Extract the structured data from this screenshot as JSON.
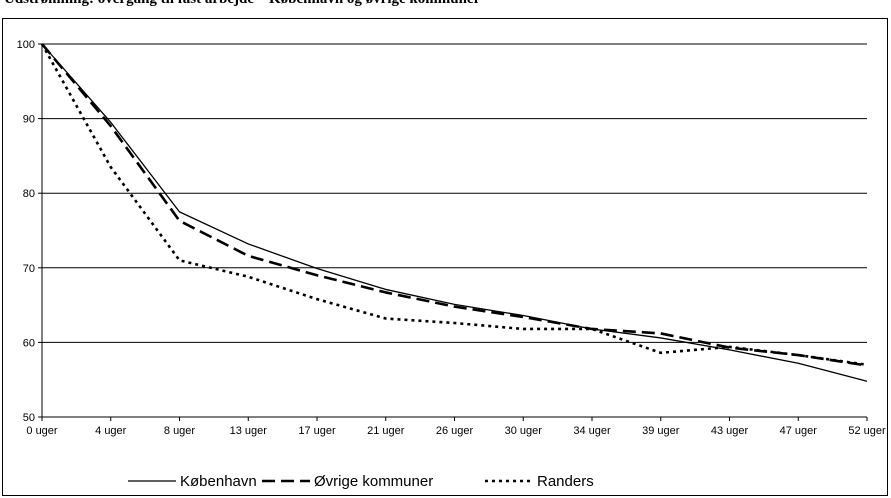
{
  "title": "Udstrømning: overgang til fast arbejde – København og øvrige kommuner",
  "chart_data": {
    "type": "line",
    "title": "",
    "xlabel": "",
    "ylabel": "",
    "categories": [
      "0 uger",
      "4 uger",
      "8 uger",
      "13 uger",
      "17 uger",
      "21 uger",
      "26 uger",
      "30 uger",
      "34 uger",
      "39 uger",
      "43 uger",
      "47 uger",
      "52 uger"
    ],
    "ylim": [
      50,
      100
    ],
    "yticks": [
      50,
      60,
      70,
      80,
      90,
      100
    ],
    "grid": true,
    "legend_position": "bottom",
    "series": [
      {
        "name": "København",
        "values": [
          100,
          89.5,
          77.5,
          73.2,
          69.9,
          67.1,
          65.1,
          63.6,
          61.8,
          60.6,
          59.0,
          57.2,
          54.8
        ],
        "color": "#000000",
        "style": "solid"
      },
      {
        "name": "Øvrige kommuner",
        "values": [
          100,
          89.0,
          76.3,
          71.6,
          69.0,
          66.7,
          64.8,
          63.4,
          61.8,
          61.2,
          59.3,
          58.3,
          56.9
        ],
        "color": "#000000",
        "style": "dashed"
      },
      {
        "name": "Randers",
        "values": [
          100,
          83.5,
          71.0,
          68.8,
          65.8,
          63.2,
          62.6,
          61.8,
          61.8,
          58.6,
          59.4,
          58.3,
          57.0
        ],
        "color": "#000000",
        "style": "dotted"
      }
    ]
  }
}
